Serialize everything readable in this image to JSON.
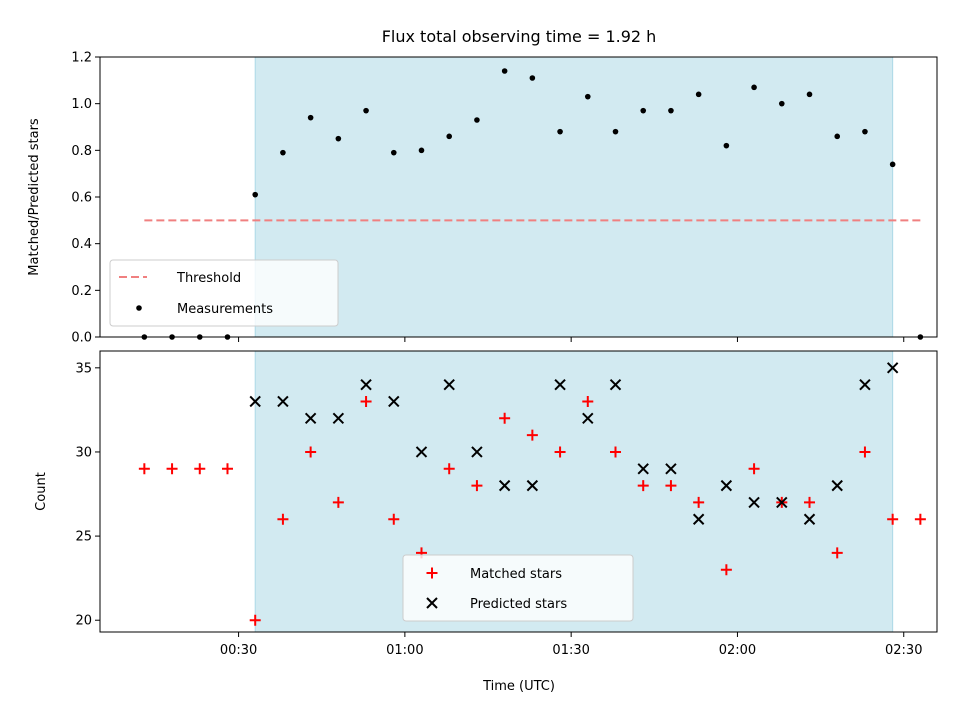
{
  "chart_data": {
    "type": "scatter",
    "title": "Flux total observing time = 1.92 h",
    "xlabel": "Time (UTC)",
    "x_unit": "HH:MM UTC",
    "xlim": [
      "00:05",
      "02:36"
    ],
    "x_ticks": [
      "00:30",
      "01:00",
      "01:30",
      "02:00",
      "02:30"
    ],
    "observing_window": [
      "00:33",
      "02:28"
    ],
    "colors": {
      "window": "#add8e6",
      "threshold": "#f08080",
      "measurements": "#000000",
      "matched": "#ff0000",
      "predicted": "#000000"
    },
    "panels": [
      {
        "id": "ratio",
        "ylabel": "Matched/Predicted stars",
        "ylim": [
          0.0,
          1.2
        ],
        "y_ticks": [
          "0.0",
          "0.2",
          "0.4",
          "0.6",
          "0.8",
          "1.0",
          "1.2"
        ],
        "legend_position": "lower-left",
        "threshold": {
          "name": "Threshold",
          "value": 0.5,
          "x_range": [
            "00:13",
            "02:33"
          ]
        },
        "series": [
          {
            "name": "Measurements",
            "marker": "dot",
            "points": [
              [
                "00:13",
                0.0
              ],
              [
                "00:18",
                0.0
              ],
              [
                "00:23",
                0.0
              ],
              [
                "00:28",
                0.0
              ],
              [
                "00:33",
                0.61
              ],
              [
                "00:38",
                0.79
              ],
              [
                "00:43",
                0.94
              ],
              [
                "00:48",
                0.85
              ],
              [
                "00:53",
                0.97
              ],
              [
                "00:58",
                0.79
              ],
              [
                "01:03",
                0.8
              ],
              [
                "01:08",
                0.86
              ],
              [
                "01:13",
                0.93
              ],
              [
                "01:18",
                1.14
              ],
              [
                "01:23",
                1.11
              ],
              [
                "01:28",
                0.88
              ],
              [
                "01:33",
                1.03
              ],
              [
                "01:38",
                0.88
              ],
              [
                "01:43",
                0.97
              ],
              [
                "01:48",
                0.97
              ],
              [
                "01:53",
                1.04
              ],
              [
                "01:58",
                0.82
              ],
              [
                "02:03",
                1.07
              ],
              [
                "02:08",
                1.0
              ],
              [
                "02:13",
                1.04
              ],
              [
                "02:18",
                0.86
              ],
              [
                "02:23",
                0.88
              ],
              [
                "02:28",
                0.74
              ],
              [
                "02:33",
                0.0
              ]
            ]
          }
        ]
      },
      {
        "id": "count",
        "ylabel": "Count",
        "ylim": [
          19.3,
          36.0
        ],
        "y_ticks": [
          "20",
          "25",
          "30",
          "35"
        ],
        "legend_position": "lower-center",
        "series": [
          {
            "name": "Matched stars",
            "marker": "plus",
            "points": [
              [
                "00:13",
                29
              ],
              [
                "00:18",
                29
              ],
              [
                "00:23",
                29
              ],
              [
                "00:28",
                29
              ],
              [
                "00:33",
                20
              ],
              [
                "00:38",
                26
              ],
              [
                "00:43",
                30
              ],
              [
                "00:48",
                27
              ],
              [
                "00:53",
                33
              ],
              [
                "00:58",
                26
              ],
              [
                "01:03",
                24
              ],
              [
                "01:08",
                29
              ],
              [
                "01:13",
                28
              ],
              [
                "01:18",
                32
              ],
              [
                "01:23",
                31
              ],
              [
                "01:28",
                30
              ],
              [
                "01:33",
                33
              ],
              [
                "01:38",
                30
              ],
              [
                "01:43",
                28
              ],
              [
                "01:48",
                28
              ],
              [
                "01:53",
                27
              ],
              [
                "01:58",
                23
              ],
              [
                "02:03",
                29
              ],
              [
                "02:08",
                27
              ],
              [
                "02:13",
                27
              ],
              [
                "02:18",
                24
              ],
              [
                "02:23",
                30
              ],
              [
                "02:28",
                26
              ],
              [
                "02:33",
                26
              ]
            ]
          },
          {
            "name": "Predicted stars",
            "marker": "x",
            "points": [
              [
                "00:33",
                33
              ],
              [
                "00:38",
                33
              ],
              [
                "00:43",
                32
              ],
              [
                "00:48",
                32
              ],
              [
                "00:53",
                34
              ],
              [
                "00:58",
                33
              ],
              [
                "01:03",
                30
              ],
              [
                "01:08",
                34
              ],
              [
                "01:13",
                30
              ],
              [
                "01:18",
                28
              ],
              [
                "01:23",
                28
              ],
              [
                "01:28",
                34
              ],
              [
                "01:33",
                32
              ],
              [
                "01:38",
                34
              ],
              [
                "01:43",
                29
              ],
              [
                "01:48",
                29
              ],
              [
                "01:53",
                26
              ],
              [
                "01:58",
                28
              ],
              [
                "02:03",
                27
              ],
              [
                "02:08",
                27
              ],
              [
                "02:13",
                26
              ],
              [
                "02:18",
                28
              ],
              [
                "02:23",
                34
              ],
              [
                "02:28",
                35
              ]
            ]
          }
        ]
      }
    ]
  }
}
